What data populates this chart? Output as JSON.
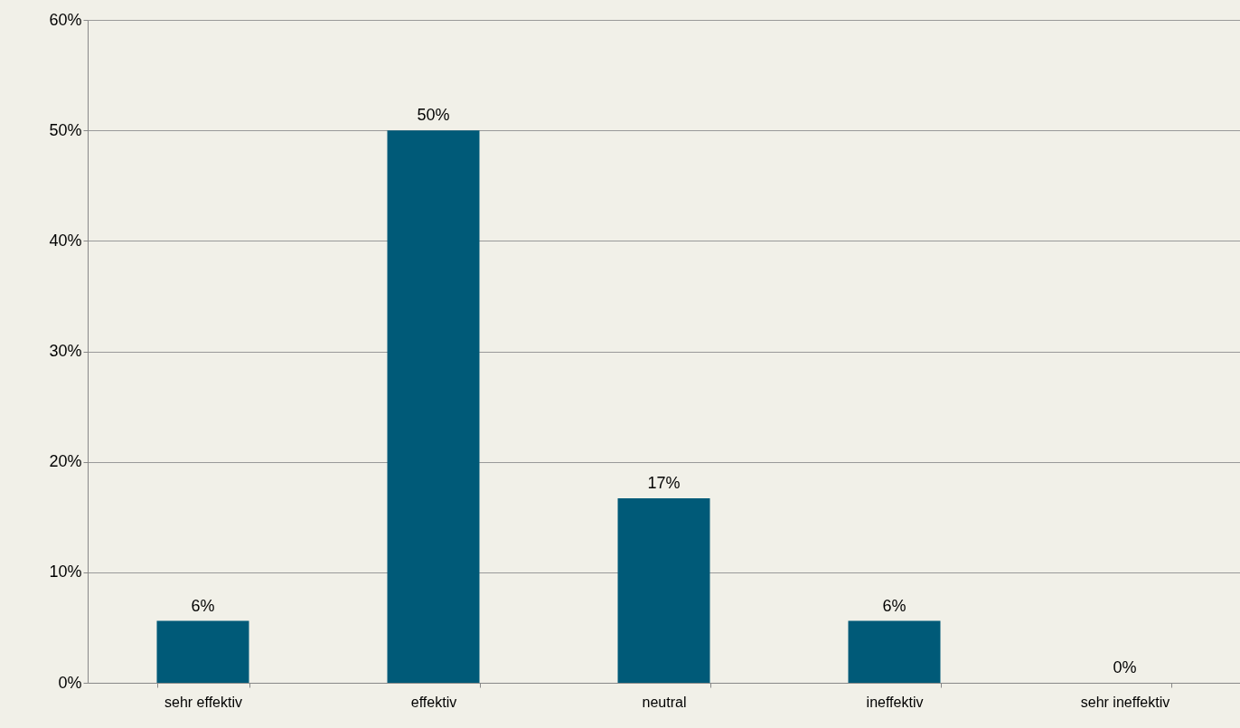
{
  "chart_data": {
    "type": "bar",
    "categories": [
      "sehr effektiv",
      "effektiv",
      "neutral",
      "ineffektiv",
      "sehr ineffektiv"
    ],
    "values": [
      5.6,
      50,
      16.7,
      5.6,
      0
    ],
    "value_labels": [
      "6%",
      "50%",
      "17%",
      "6%",
      "0%"
    ],
    "color": "#005a78",
    "ylim": [
      0,
      60
    ],
    "yticks": [
      {
        "value": 0,
        "label": "0%"
      },
      {
        "value": 10,
        "label": "10%"
      },
      {
        "value": 20,
        "label": "20%"
      },
      {
        "value": 30,
        "label": "30%"
      },
      {
        "value": 40,
        "label": "40%"
      },
      {
        "value": 50,
        "label": "50%"
      },
      {
        "value": 60,
        "label": "60%"
      }
    ],
    "grid": "y"
  }
}
